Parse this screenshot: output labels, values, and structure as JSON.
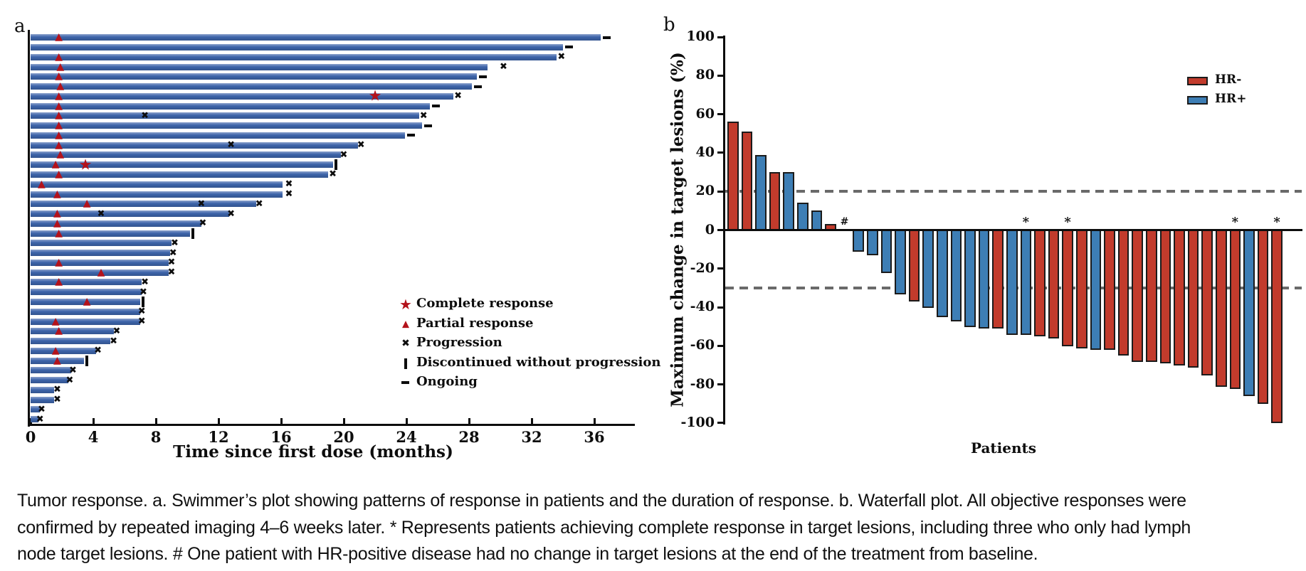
{
  "figure": {
    "caption_lines": [
      "Tumor response. a. Swimmer’s plot showing patterns of response in patients and the duration of response. b. Waterfall plot. All objective responses were",
      "confirmed by repeated imaging 4–6 weeks later. * Represents patients achieving complete response in target lesions, including three who only had lymph",
      "node target lesions. # One patient with HR-positive disease had no change in target lesions at the end of the treatment from baseline."
    ]
  },
  "colors": {
    "swimmer_bar_blue": "#3d64aa",
    "marker_red": "#b3121b",
    "marker_black": "#0d0d0d",
    "hr_negative_red": "#c23b2c",
    "hr_positive_blue": "#3d7eb5",
    "reference_dash_gray": "#6a6a6a"
  },
  "chart_data": [
    {
      "type": "swimmer",
      "title": "a",
      "xlabel": "Time since first dose (months)",
      "xlim": [
        0,
        38
      ],
      "xticks": [
        0,
        4,
        8,
        12,
        16,
        20,
        24,
        28,
        32,
        36
      ],
      "legend": [
        {
          "symbol": "star",
          "label": "Complete response"
        },
        {
          "symbol": "triangle",
          "label": "Partial response"
        },
        {
          "symbol": "x",
          "label": "Progression"
        },
        {
          "symbol": "vbar",
          "label": "Discontinued without progression"
        },
        {
          "symbol": "dash",
          "label": "Ongoing"
        }
      ],
      "patients": [
        {
          "len": 36.4,
          "end": "ongoing",
          "tri": [
            1.8
          ],
          "star": [],
          "xs": []
        },
        {
          "len": 34.0,
          "end": "ongoing",
          "tri": [],
          "star": [],
          "xs": []
        },
        {
          "len": 33.6,
          "end": null,
          "tri": [
            1.8
          ],
          "star": [],
          "xs": [
            33.9
          ]
        },
        {
          "len": 29.2,
          "end": null,
          "tri": [
            1.9
          ],
          "star": [],
          "xs": [
            30.2
          ]
        },
        {
          "len": 28.5,
          "end": "ongoing",
          "tri": [
            1.8
          ],
          "star": [],
          "xs": []
        },
        {
          "len": 28.2,
          "end": "ongoing",
          "tri": [
            1.9
          ],
          "star": [],
          "xs": []
        },
        {
          "len": 27.0,
          "end": null,
          "tri": [
            1.8
          ],
          "star": [
            22.0
          ],
          "xs": [
            27.3
          ]
        },
        {
          "len": 25.5,
          "end": "ongoing",
          "tri": [
            1.8
          ],
          "star": [],
          "xs": []
        },
        {
          "len": 24.8,
          "end": null,
          "tri": [
            1.8
          ],
          "star": [],
          "xs": [
            7.3,
            25.1
          ]
        },
        {
          "len": 25.0,
          "end": "ongoing",
          "tri": [
            1.8
          ],
          "star": [],
          "xs": []
        },
        {
          "len": 23.9,
          "end": "ongoing",
          "tri": [
            1.8
          ],
          "star": [],
          "xs": []
        },
        {
          "len": 20.9,
          "end": null,
          "tri": [
            1.8
          ],
          "star": [],
          "xs": [
            12.8,
            21.1
          ]
        },
        {
          "len": 19.8,
          "end": null,
          "tri": [
            1.9
          ],
          "star": [],
          "xs": [
            20.0
          ]
        },
        {
          "len": 19.3,
          "end": "disc",
          "tri": [
            1.6
          ],
          "star": [
            3.5
          ],
          "xs": []
        },
        {
          "len": 19.0,
          "end": null,
          "tri": [
            1.8
          ],
          "star": [],
          "xs": [
            19.3
          ]
        },
        {
          "len": 16.1,
          "end": null,
          "tri": [
            0.7
          ],
          "star": [],
          "xs": [
            16.5
          ]
        },
        {
          "len": 16.1,
          "end": null,
          "tri": [
            1.7
          ],
          "star": [],
          "xs": [
            16.5
          ]
        },
        {
          "len": 14.4,
          "end": null,
          "tri": [
            3.6
          ],
          "star": [],
          "xs": [
            10.9,
            14.6
          ]
        },
        {
          "len": 12.7,
          "end": null,
          "tri": [
            1.7
          ],
          "star": [],
          "xs": [
            4.5,
            12.8
          ]
        },
        {
          "len": 10.9,
          "end": null,
          "tri": [
            1.7
          ],
          "star": [],
          "xs": [
            11.0
          ]
        },
        {
          "len": 10.2,
          "end": "disc",
          "tri": [
            1.8
          ],
          "star": [],
          "xs": []
        },
        {
          "len": 9.0,
          "end": null,
          "tri": [],
          "star": [],
          "xs": [
            9.2
          ]
        },
        {
          "len": 8.9,
          "end": null,
          "tri": [],
          "star": [],
          "xs": [
            9.1
          ]
        },
        {
          "len": 8.8,
          "end": null,
          "tri": [
            1.8
          ],
          "star": [],
          "xs": [
            9.0
          ]
        },
        {
          "len": 8.8,
          "end": null,
          "tri": [
            4.5
          ],
          "star": [],
          "xs": [
            9.0
          ]
        },
        {
          "len": 7.1,
          "end": null,
          "tri": [
            1.8
          ],
          "star": [],
          "xs": [
            7.3
          ]
        },
        {
          "len": 7.1,
          "end": null,
          "tri": [],
          "star": [],
          "xs": [
            7.2
          ]
        },
        {
          "len": 7.0,
          "end": "disc",
          "tri": [
            3.6
          ],
          "star": [],
          "xs": []
        },
        {
          "len": 7.0,
          "end": null,
          "tri": [],
          "star": [],
          "xs": [
            7.1
          ]
        },
        {
          "len": 7.0,
          "end": null,
          "tri": [
            1.6
          ],
          "star": [],
          "xs": [
            7.1
          ]
        },
        {
          "len": 5.3,
          "end": null,
          "tri": [
            1.8
          ],
          "star": [],
          "xs": [
            5.5
          ]
        },
        {
          "len": 5.1,
          "end": null,
          "tri": [],
          "star": [],
          "xs": [
            5.3
          ]
        },
        {
          "len": 4.2,
          "end": null,
          "tri": [
            1.6
          ],
          "star": [],
          "xs": [
            4.3
          ]
        },
        {
          "len": 3.4,
          "end": "disc",
          "tri": [
            1.7
          ],
          "star": [],
          "xs": []
        },
        {
          "len": 2.6,
          "end": null,
          "tri": [],
          "star": [],
          "xs": [
            2.7
          ]
        },
        {
          "len": 2.4,
          "end": null,
          "tri": [],
          "star": [],
          "xs": [
            2.5
          ]
        },
        {
          "len": 1.5,
          "end": null,
          "tri": [],
          "star": [],
          "xs": [
            1.7
          ]
        },
        {
          "len": 1.5,
          "end": null,
          "tri": [],
          "star": [],
          "xs": [
            1.7
          ]
        },
        {
          "len": 0.6,
          "end": null,
          "tri": [],
          "star": [],
          "xs": [
            0.7
          ]
        },
        {
          "len": 0.5,
          "end": null,
          "tri": [],
          "star": [],
          "xs": [
            0.6
          ]
        }
      ]
    },
    {
      "type": "bar",
      "title": "b",
      "ylabel": "Maximum change in target lesions (%)",
      "xlabel": "Patients",
      "ylim": [
        -100,
        100
      ],
      "yticks": [
        100,
        80,
        60,
        40,
        20,
        0,
        -20,
        -40,
        -60,
        -80,
        -100
      ],
      "reference_lines": [
        20,
        -30
      ],
      "legend": [
        {
          "name": "HR-",
          "color": "#c23b2c"
        },
        {
          "name": "HR+",
          "color": "#3d7eb5"
        }
      ],
      "bars": [
        {
          "value": 56,
          "group": "HR-"
        },
        {
          "value": 51,
          "group": "HR-"
        },
        {
          "value": 39,
          "group": "HR+"
        },
        {
          "value": 30,
          "group": "HR-"
        },
        {
          "value": 30,
          "group": "HR+"
        },
        {
          "value": 14,
          "group": "HR+"
        },
        {
          "value": 10,
          "group": "HR+"
        },
        {
          "value": 3,
          "group": "HR-"
        },
        {
          "value": 0,
          "group": "HR+",
          "mark": "#"
        },
        {
          "value": -11,
          "group": "HR+"
        },
        {
          "value": -13,
          "group": "HR+"
        },
        {
          "value": -22,
          "group": "HR+"
        },
        {
          "value": -33,
          "group": "HR+"
        },
        {
          "value": -37,
          "group": "HR-"
        },
        {
          "value": -40,
          "group": "HR+"
        },
        {
          "value": -45,
          "group": "HR+"
        },
        {
          "value": -47,
          "group": "HR+"
        },
        {
          "value": -50,
          "group": "HR+"
        },
        {
          "value": -51,
          "group": "HR+"
        },
        {
          "value": -51,
          "group": "HR-"
        },
        {
          "value": -54,
          "group": "HR+"
        },
        {
          "value": -54,
          "group": "HR+",
          "mark": "*"
        },
        {
          "value": -55,
          "group": "HR-"
        },
        {
          "value": -56,
          "group": "HR-"
        },
        {
          "value": -60,
          "group": "HR-",
          "mark": "*"
        },
        {
          "value": -61,
          "group": "HR-"
        },
        {
          "value": -62,
          "group": "HR+"
        },
        {
          "value": -62,
          "group": "HR-"
        },
        {
          "value": -65,
          "group": "HR-"
        },
        {
          "value": -68,
          "group": "HR-"
        },
        {
          "value": -68,
          "group": "HR-"
        },
        {
          "value": -69,
          "group": "HR-"
        },
        {
          "value": -70,
          "group": "HR-"
        },
        {
          "value": -71,
          "group": "HR-"
        },
        {
          "value": -75,
          "group": "HR-"
        },
        {
          "value": -81,
          "group": "HR-"
        },
        {
          "value": -82,
          "group": "HR-",
          "mark": "*"
        },
        {
          "value": -86,
          "group": "HR+"
        },
        {
          "value": -90,
          "group": "HR-"
        },
        {
          "value": -100,
          "group": "HR-",
          "mark": "*"
        }
      ]
    }
  ]
}
